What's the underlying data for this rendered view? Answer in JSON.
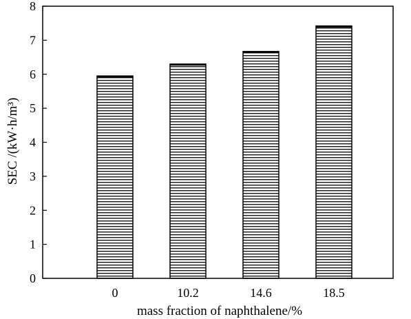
{
  "chart_data": {
    "type": "bar",
    "categories": [
      "0",
      "10.2",
      "14.6",
      "18.5"
    ],
    "values": [
      5.95,
      6.3,
      6.67,
      7.42
    ],
    "title": "",
    "xlabel": "mass fraction of naphthalene/%",
    "ylabel": "SEC /(kW·h/m³)",
    "ylim": [
      0,
      8
    ],
    "yticks": [
      "0",
      "1",
      "2",
      "3",
      "4",
      "5",
      "6",
      "7",
      "8"
    ],
    "grid": false,
    "bar_fill": "horizontal-hatch",
    "colors": {
      "bar_stroke": "#000000",
      "hatch": "#000000",
      "background": "#ffffff"
    }
  }
}
